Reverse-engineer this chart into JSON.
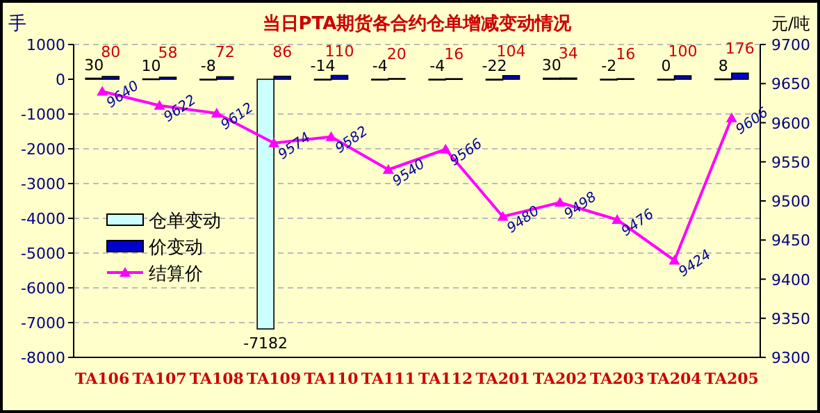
{
  "chart_data": {
    "type": "bar",
    "title": "当日PTA期货各合约仓单增减变动情况",
    "ylabel": "手",
    "y2label": "元/吨",
    "categories": [
      "TA106",
      "TA107",
      "TA108",
      "TA109",
      "TA110",
      "TA111",
      "TA112",
      "TA201",
      "TA202",
      "TA203",
      "TA204",
      "TA205"
    ],
    "ylim": [
      -8000,
      1000
    ],
    "yticks": [
      -8000,
      -7000,
      -6000,
      -5000,
      -4000,
      -3000,
      -2000,
      -1000,
      0,
      1000
    ],
    "y2lim": [
      9300,
      9700
    ],
    "y2ticks": [
      9300,
      9350,
      9400,
      9450,
      9500,
      9550,
      9600,
      9650,
      9700
    ],
    "grid": "y",
    "legend": "left",
    "series": [
      {
        "name": "仓单变动",
        "color": "#ccffff",
        "values": [
          30,
          10,
          -8,
          -7182,
          -14,
          -4,
          -4,
          -22,
          30,
          -2,
          0,
          8
        ],
        "value_labels": [
          "30",
          "10",
          "-8",
          "-7182",
          "-14",
          "-4",
          "-4",
          "-22",
          "30",
          "-2",
          "0",
          "8"
        ]
      },
      {
        "name": "价变动",
        "color": "#0000cc",
        "values": [
          80,
          58,
          72,
          86,
          110,
          20,
          16,
          104,
          34,
          16,
          100,
          176
        ],
        "value_labels": [
          "80",
          "58",
          "72",
          "86",
          "110",
          "20",
          "16",
          "104",
          "34",
          "16",
          "100",
          "176"
        ]
      },
      {
        "name": "结算价",
        "type": "line",
        "axis": "y2",
        "color": "#ff00ff",
        "marker": "triangle",
        "values": [
          9640,
          9622,
          9612,
          9574,
          9582,
          9540,
          9566,
          9480,
          9498,
          9476,
          9424,
          9606
        ],
        "value_labels": [
          "9640",
          "9622",
          "9612",
          "9574",
          "9582",
          "9540",
          "9566",
          "9480",
          "9498",
          "9476",
          "9424",
          "9606"
        ]
      }
    ]
  }
}
